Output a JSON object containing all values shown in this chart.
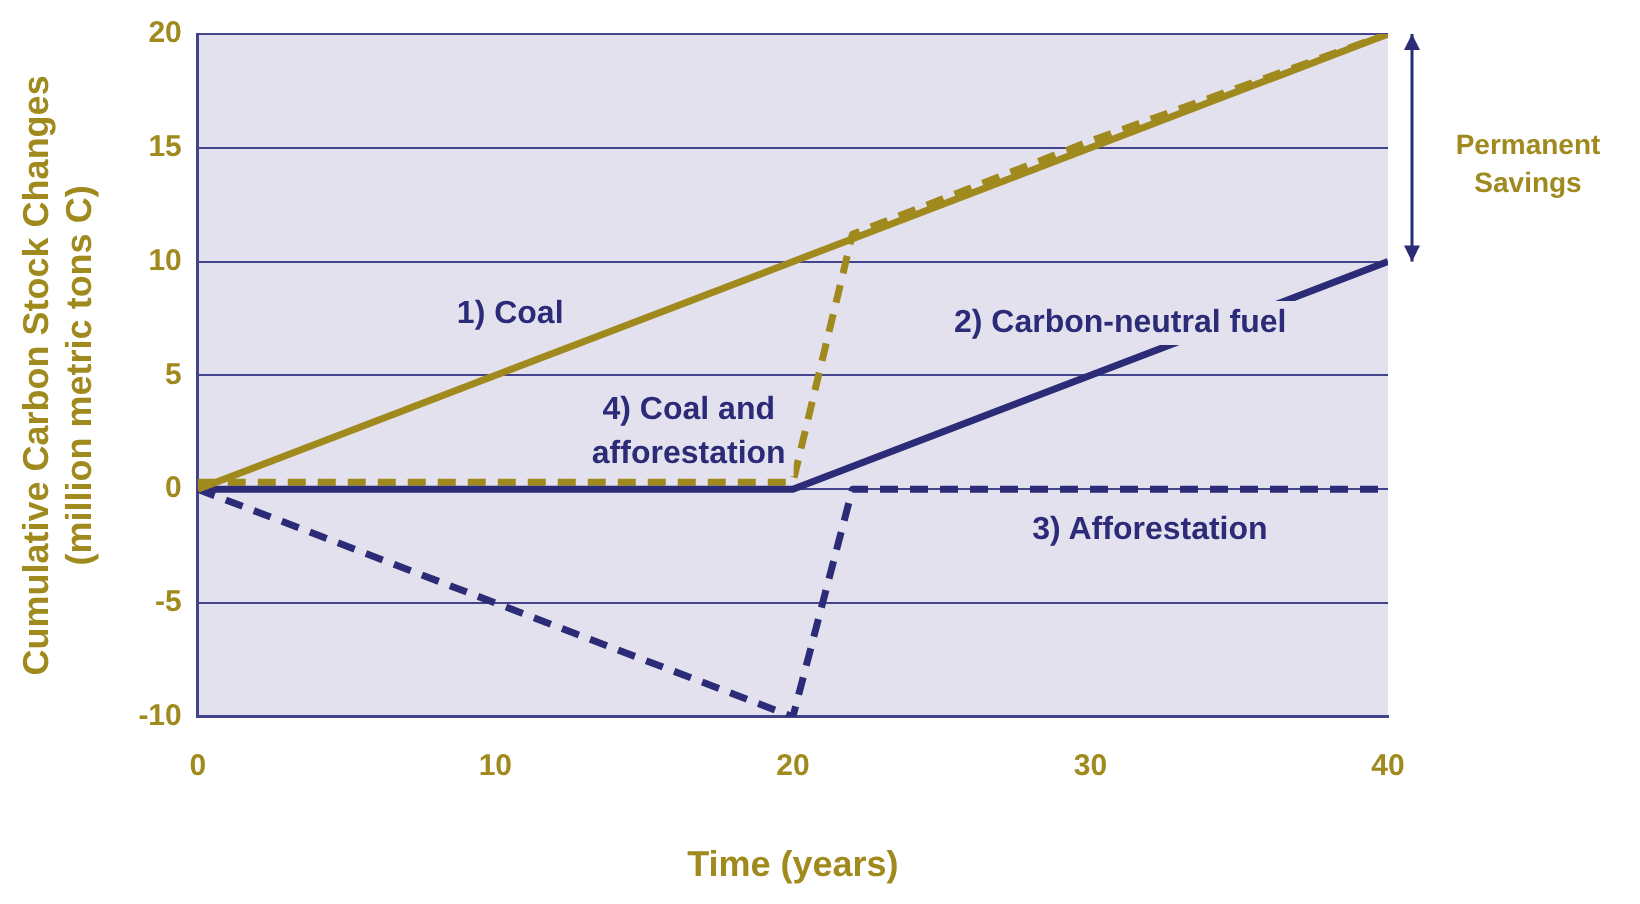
{
  "chart_data": {
    "type": "line",
    "xlabel": "Time (years)",
    "ylabel": "Cumulative Carbon Stock Changes\n(million metric tons C)",
    "xlim": [
      0,
      40
    ],
    "xticks": [
      0,
      10,
      20,
      30,
      40
    ],
    "ylim": [
      -10,
      20
    ],
    "yticks": [
      -10,
      -5,
      0,
      5,
      10,
      15,
      20
    ],
    "grid": "y",
    "legend": false,
    "series": [
      {
        "name": "1) Coal",
        "color": "#a08a1e",
        "x": [
          0,
          40
        ],
        "values": [
          0,
          20
        ],
        "line_style": "solid"
      },
      {
        "name": "2) Carbon-neutral fuel",
        "color": "#2b2b78",
        "x": [
          0,
          20,
          40
        ],
        "values": [
          0,
          0,
          10
        ],
        "line_style": "solid"
      },
      {
        "name": "3) Afforestation",
        "color": "#2b2b78",
        "x": [
          0,
          20,
          22,
          40
        ],
        "values": [
          0,
          -10,
          0,
          0
        ],
        "line_style": "dashed"
      },
      {
        "name": "4) Coal and\nafforestation",
        "color": "#a08a1e",
        "x": [
          0,
          20,
          22,
          30,
          40
        ],
        "values": [
          0.3,
          0.3,
          11.2,
          15.3,
          20
        ],
        "line_style": "dashed"
      }
    ],
    "annotations": [
      "Permanent\nSavings"
    ]
  }
}
